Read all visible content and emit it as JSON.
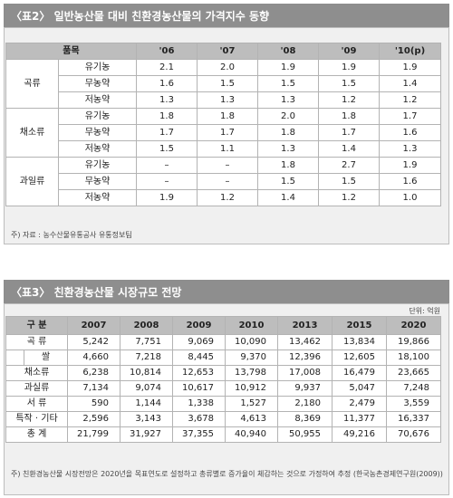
{
  "table1": {
    "title": "〈표2〉 일반농산물 대비 친환경농산물의 가격지수 동향",
    "header_item": "품목",
    "years": [
      "'06",
      "'07",
      "'08",
      "'09",
      "'10(p)"
    ],
    "groups": [
      {
        "name": "곡류",
        "rows": [
          {
            "type": "유기농",
            "values": [
              "2.1",
              "2.0",
              "1.9",
              "1.9",
              "1.9"
            ]
          },
          {
            "type": "무농약",
            "values": [
              "1.6",
              "1.5",
              "1.5",
              "1.5",
              "1.4"
            ]
          },
          {
            "type": "저농약",
            "values": [
              "1.3",
              "1.3",
              "1.3",
              "1.2",
              "1.2"
            ]
          }
        ]
      },
      {
        "name": "채소류",
        "rows": [
          {
            "type": "유기농",
            "values": [
              "1.8",
              "1.8",
              "2.0",
              "1.8",
              "1.7"
            ]
          },
          {
            "type": "무농약",
            "values": [
              "1.7",
              "1.7",
              "1.8",
              "1.7",
              "1.6"
            ]
          },
          {
            "type": "저농약",
            "values": [
              "1.5",
              "1.1",
              "1.3",
              "1.4",
              "1.3"
            ]
          }
        ]
      },
      {
        "name": "과일류",
        "rows": [
          {
            "type": "유기농",
            "values": [
              "–",
              "–",
              "1.8",
              "2.7",
              "1.9"
            ]
          },
          {
            "type": "무농약",
            "values": [
              "–",
              "–",
              "1.5",
              "1.5",
              "1.6"
            ]
          },
          {
            "type": "저농약",
            "values": [
              "1.9",
              "1.2",
              "1.4",
              "1.2",
              "1.0"
            ]
          }
        ]
      }
    ],
    "note": "주) 자료 : 농수산물유통공사 유통정보팀"
  },
  "table2": {
    "title": "〈표3〉 친환경농산물 시장규모 전망",
    "unit": "단위: 억원",
    "header_item": "구  분",
    "years": [
      "2007",
      "2008",
      "2009",
      "2010",
      "2013",
      "2015",
      "2020"
    ],
    "rows": [
      {
        "label": "곡  류",
        "values": [
          "5,242",
          "7,751",
          "9,069",
          "10,090",
          "13,462",
          "13,834",
          "19,866"
        ]
      },
      {
        "label": "쌀",
        "sub": true,
        "values": [
          "4,660",
          "7,218",
          "8,445",
          "9,370",
          "12,396",
          "12,605",
          "18,100"
        ]
      },
      {
        "label": "채소류",
        "values": [
          "6,238",
          "10,814",
          "12,653",
          "13,798",
          "17,008",
          "16,479",
          "23,665"
        ]
      },
      {
        "label": "과실류",
        "values": [
          "7,134",
          "9,074",
          "10,617",
          "10,912",
          "9,937",
          "5,047",
          "7,248"
        ]
      },
      {
        "label": "서  류",
        "values": [
          "590",
          "1,144",
          "1,338",
          "1,527",
          "2,180",
          "2,479",
          "3,559"
        ]
      },
      {
        "label": "특작 · 기타",
        "values": [
          "2,596",
          "3,143",
          "3,678",
          "4,613",
          "8,369",
          "11,377",
          "16,337"
        ]
      },
      {
        "label": "총  계",
        "values": [
          "21,799",
          "31,927",
          "37,355",
          "40,940",
          "50,955",
          "49,216",
          "70,676"
        ]
      }
    ],
    "note": "주) 친환경농산물 시장전망은 2020년을 목표연도로 설정하고 총류별로 증가율이 체감하는 것으로 가정하여 추정 (한국농촌경제연구원(2009))"
  }
}
